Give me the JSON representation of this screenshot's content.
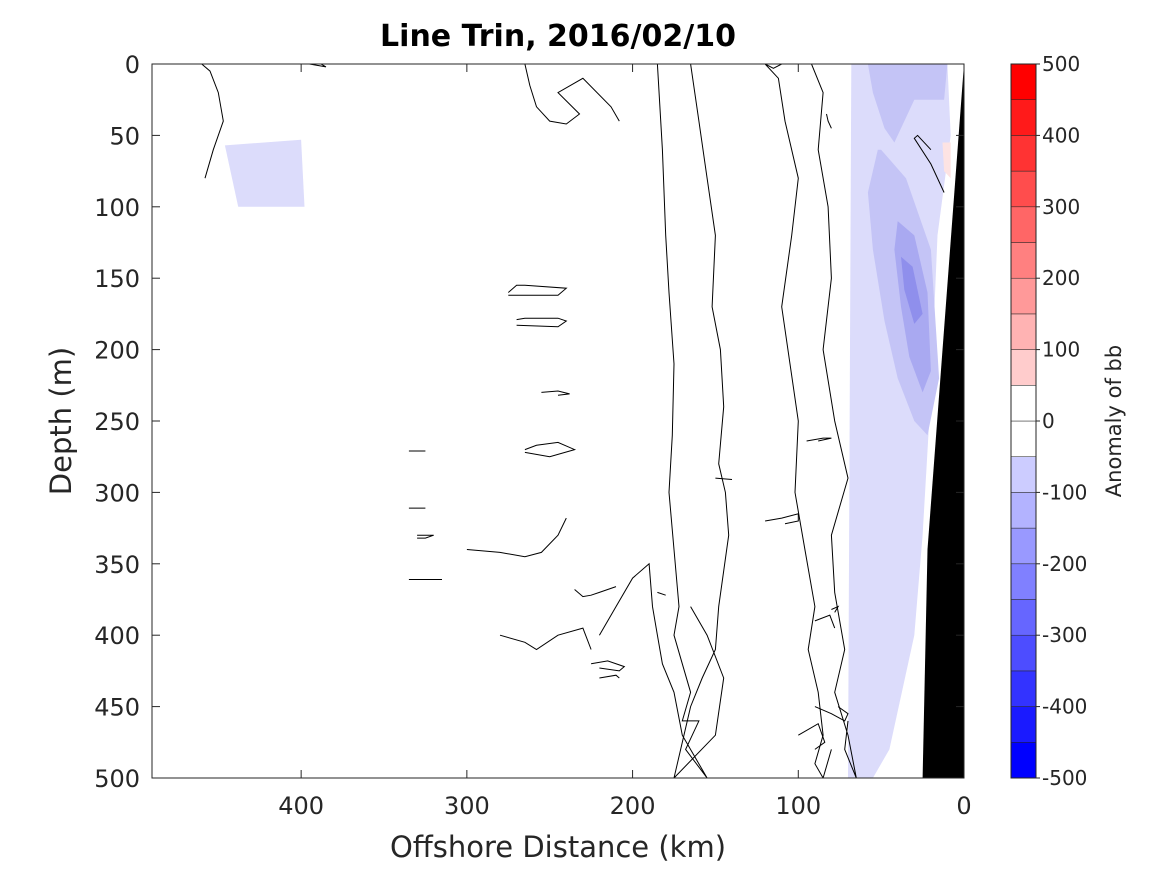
{
  "chart_data": {
    "type": "heatmap",
    "title": "Line Trin, 2016/02/10",
    "xlabel": "Offshore Distance (km)",
    "ylabel": "Depth (m)",
    "xlim": [
      490,
      0
    ],
    "ylim": [
      0,
      500
    ],
    "x_reversed": true,
    "y_reversed": true,
    "xticks": [
      400,
      300,
      200,
      100,
      0
    ],
    "yticks": [
      0,
      50,
      100,
      150,
      200,
      250,
      300,
      350,
      400,
      450,
      500
    ],
    "colorbar": {
      "label": "Anomaly of bb",
      "range": [
        -500,
        500
      ],
      "level_step": 50,
      "ticks": [
        500,
        400,
        300,
        200,
        100,
        0,
        -100,
        -200,
        -300,
        -400,
        -500
      ],
      "min_color": "#0000ff",
      "mid_color": "#ffffff",
      "max_color": "#ff0000"
    },
    "contour_levels": [
      0
    ],
    "bathymetry_color": "#000000",
    "anomaly_regions": [
      {
        "level": -25,
        "color": "#dcdcfb",
        "x": [
          446,
          400,
          398,
          438
        ],
        "y": [
          57,
          53,
          100,
          100
        ]
      },
      {
        "level": -25,
        "color": "#dcdcfb",
        "x": [
          68,
          58,
          10,
          8,
          16,
          20,
          25,
          30,
          45,
          55,
          70
        ],
        "y": [
          0,
          0,
          0,
          50,
          120,
          230,
          330,
          400,
          480,
          500,
          500
        ]
      },
      {
        "level": -75,
        "color": "#c4c4f6",
        "x": [
          58,
          10,
          12,
          30,
          38,
          42,
          48,
          55,
          58
        ],
        "y": [
          0,
          0,
          25,
          25,
          45,
          55,
          45,
          20,
          0
        ]
      },
      {
        "level": -75,
        "color": "#c4c4f6",
        "x": [
          50,
          35,
          20,
          15,
          22,
          30,
          40,
          48,
          55,
          58,
          52
        ],
        "y": [
          60,
          80,
          130,
          220,
          260,
          250,
          220,
          180,
          130,
          90,
          60
        ]
      },
      {
        "level": -125,
        "color": "#a9a9f1",
        "x": [
          40,
          30,
          22,
          20,
          25,
          33,
          38,
          42
        ],
        "y": [
          110,
          120,
          160,
          215,
          230,
          205,
          170,
          130
        ]
      },
      {
        "level": -175,
        "color": "#8f8fec",
        "x": [
          38,
          31,
          25,
          30,
          36
        ],
        "y": [
          135,
          142,
          175,
          182,
          158
        ]
      },
      {
        "level": 25,
        "color": "#fde3e3",
        "x": [
          13,
          8,
          8,
          12
        ],
        "y": [
          55,
          55,
          80,
          75
        ]
      }
    ],
    "zero_contours": [
      {
        "x": [
          460,
          455,
          450,
          447,
          453,
          458
        ],
        "y": [
          0,
          5,
          20,
          40,
          60,
          80
        ]
      },
      {
        "x": [
          395,
          385,
          388
        ],
        "y": [
          0,
          2,
          0
        ]
      },
      {
        "x": [
          265,
          262,
          258,
          250,
          240,
          232,
          245,
          230,
          213,
          208
        ],
        "y": [
          0,
          15,
          30,
          40,
          42,
          35,
          20,
          10,
          30,
          40
        ]
      },
      {
        "x": [
          275,
          270,
          265,
          240,
          245,
          275
        ],
        "y": [
          160,
          155,
          155,
          157,
          162,
          162
        ]
      },
      {
        "x": [
          270,
          265,
          245,
          240,
          245,
          270
        ],
        "y": [
          179,
          178,
          178,
          180,
          184,
          183
        ]
      },
      {
        "x": [
          255,
          245,
          238,
          245
        ],
        "y": [
          230,
          229,
          231,
          232
        ]
      },
      {
        "x": [
          265,
          258,
          245,
          235,
          250,
          265
        ],
        "y": [
          270,
          267,
          265,
          270,
          275,
          272
        ]
      },
      {
        "x": [
          335,
          325
        ],
        "y": [
          271,
          271
        ]
      },
      {
        "x": [
          335,
          325
        ],
        "y": [
          311,
          311
        ]
      },
      {
        "x": [
          330,
          320,
          325,
          330
        ],
        "y": [
          330,
          330,
          332,
          332
        ]
      },
      {
        "x": [
          335,
          315
        ],
        "y": [
          361,
          361
        ]
      },
      {
        "x": [
          300,
          280,
          265,
          255,
          245,
          240
        ],
        "y": [
          340,
          342,
          345,
          342,
          330,
          318
        ]
      },
      {
        "x": [
          235,
          230,
          225,
          220,
          215,
          210
        ],
        "y": [
          368,
          373,
          372,
          370,
          368,
          366
        ]
      },
      {
        "x": [
          280,
          265,
          258,
          245,
          230,
          225
        ],
        "y": [
          400,
          405,
          410,
          400,
          395,
          410
        ]
      },
      {
        "x": [
          225,
          215,
          205,
          208,
          220
        ],
        "y": [
          420,
          418,
          422,
          425,
          423
        ]
      },
      {
        "x": [
          220,
          210,
          208
        ],
        "y": [
          430,
          428,
          430
        ]
      },
      {
        "x": [
          185,
          180
        ],
        "y": [
          370,
          372
        ]
      },
      {
        "x": [
          150,
          140
        ],
        "y": [
          290,
          291
        ]
      },
      {
        "x": [
          95,
          85,
          80,
          88
        ],
        "y": [
          264,
          262,
          262,
          264
        ]
      },
      {
        "x": [
          120,
          110,
          100,
          100,
          108
        ],
        "y": [
          320,
          318,
          315,
          320,
          322
        ]
      },
      {
        "x": [
          80,
          76,
          78
        ],
        "y": [
          382,
          380,
          384
        ]
      },
      {
        "x": [
          90,
          80,
          72,
          70,
          76
        ],
        "y": [
          450,
          455,
          460,
          455,
          450
        ]
      },
      {
        "x": [
          100,
          88,
          84,
          90
        ],
        "y": [
          470,
          462,
          475,
          480
        ]
      },
      {
        "x": [
          90,
          81,
          78
        ],
        "y": [
          390,
          386,
          395
        ]
      },
      {
        "x": [
          20,
          28,
          30,
          20,
          12
        ],
        "y": [
          60,
          50,
          52,
          70,
          90
        ]
      },
      {
        "x": [
          20,
          14,
          12
        ],
        "y": [
          470,
          465,
          470
        ]
      },
      {
        "x": [
          120,
          115,
          110
        ],
        "y": [
          0,
          3,
          0
        ]
      },
      {
        "x": [
          83,
          82,
          80
        ],
        "y": [
          35,
          40,
          45
        ]
      },
      {
        "x": [
          185,
          182,
          180,
          178,
          175,
          176,
          178,
          175,
          172,
          175,
          170,
          165,
          170,
          160,
          168,
          155,
          170,
          175,
          182,
          185,
          188,
          190,
          200,
          210,
          220
        ],
        "y": [
          0,
          60,
          120,
          160,
          210,
          260,
          300,
          340,
          380,
          400,
          420,
          440,
          460,
          460,
          480,
          500,
          470,
          440,
          420,
          400,
          380,
          350,
          360,
          380,
          400
        ]
      },
      {
        "x": [
          165,
          160,
          155,
          150,
          152,
          147,
          145,
          148,
          144,
          142,
          148,
          150,
          158,
          165,
          175,
          150,
          145,
          155,
          165
        ],
        "y": [
          0,
          40,
          80,
          120,
          170,
          200,
          240,
          280,
          300,
          330,
          380,
          410,
          430,
          450,
          500,
          470,
          430,
          400,
          380
        ]
      },
      {
        "x": [
          120,
          112,
          108,
          100,
          104,
          110,
          105,
          100,
          102,
          96,
          90,
          94,
          88,
          85,
          90,
          85,
          80
        ],
        "y": [
          0,
          10,
          40,
          80,
          120,
          170,
          210,
          250,
          300,
          340,
          380,
          410,
          440,
          470,
          490,
          500,
          480
        ]
      },
      {
        "x": [
          92,
          85,
          88,
          82,
          80,
          85,
          78,
          70,
          80,
          78,
          72,
          78,
          70,
          65,
          72,
          70
        ],
        "y": [
          0,
          20,
          60,
          100,
          150,
          200,
          250,
          290,
          330,
          370,
          410,
          440,
          470,
          500,
          480,
          460
        ]
      }
    ],
    "bathymetry": {
      "x": [
        0,
        0,
        25,
        22
      ],
      "y": [
        0,
        500,
        500,
        340
      ]
    }
  }
}
